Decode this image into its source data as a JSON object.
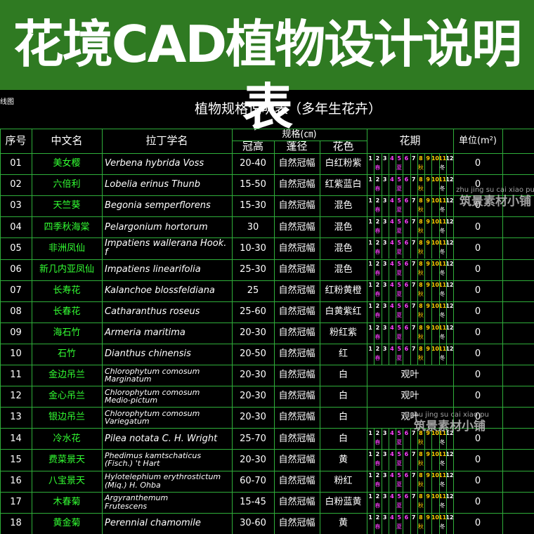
{
  "header": {
    "title": "花境CAD植物设计说明表"
  },
  "corner_label": "线图",
  "table": {
    "title": "植物规格说明表（多年生花卉）",
    "columns": {
      "no": "序号",
      "cn": "中文名",
      "latin": "拉丁学名",
      "spec": "规格(㎝)",
      "height": "冠高",
      "spread": "蓬径",
      "color": "花色",
      "period": "花期",
      "unit": "单位(m²)"
    },
    "months": [
      "1",
      "2",
      "3",
      "4",
      "5",
      "6",
      "7",
      "8",
      "9",
      "10",
      "11",
      "12"
    ],
    "seasons": [
      "春",
      "夏",
      "秋",
      "冬"
    ],
    "rows": [
      {
        "no": "01",
        "cn": "美女樱",
        "latin": "Verbena hybrida Voss",
        "height": "20-40",
        "spread": "自然冠幅",
        "color": "白红粉紫",
        "period": null,
        "unit": 0
      },
      {
        "no": "02",
        "cn": "六倍利",
        "latin": "Lobelia erinus Thunb",
        "height": "15-50",
        "spread": "自然冠幅",
        "color": "红紫蓝白",
        "period": null,
        "unit": 0
      },
      {
        "no": "03",
        "cn": "天竺葵",
        "latin": "Begonia semperflorens",
        "height": "15-30",
        "spread": "自然冠幅",
        "color": "混色",
        "period": null,
        "unit": 0
      },
      {
        "no": "04",
        "cn": "四季秋海棠",
        "latin": "Pelargonium hortorum",
        "height": "30",
        "spread": "自然冠幅",
        "color": "混色",
        "period": null,
        "unit": 0
      },
      {
        "no": "05",
        "cn": "非洲凤仙",
        "latin": "Impatiens wallerana Hook. f",
        "height": "10-30",
        "spread": "自然冠幅",
        "color": "混色",
        "period": null,
        "unit": 0
      },
      {
        "no": "06",
        "cn": "新几内亚凤仙",
        "latin": "Impatiens linearifolia",
        "height": "25-30",
        "spread": "自然冠幅",
        "color": "混色",
        "period": null,
        "unit": 0
      },
      {
        "no": "07",
        "cn": "长寿花",
        "latin": "Kalanchoe blossfeldiana",
        "height": "25",
        "spread": "自然冠幅",
        "color": "红粉黄橙",
        "period": null,
        "unit": 0
      },
      {
        "no": "08",
        "cn": "长春花",
        "latin": "Catharanthus roseus",
        "height": "25-60",
        "spread": "自然冠幅",
        "color": "白黄紫红",
        "period": null,
        "unit": 0
      },
      {
        "no": "09",
        "cn": "海石竹",
        "latin": "Armeria maritima",
        "height": "20-30",
        "spread": "自然冠幅",
        "color": "粉红紫",
        "period": null,
        "unit": 0
      },
      {
        "no": "10",
        "cn": "石竹",
        "latin": "Dianthus chinensis",
        "height": "20-50",
        "spread": "自然冠幅",
        "color": "红",
        "period": null,
        "unit": 0
      },
      {
        "no": "11",
        "cn": "金边吊兰",
        "latin": "Chlorophytum comosum\nMarginatum",
        "height": "20-30",
        "spread": "自然冠幅",
        "color": "白",
        "period": "观叶",
        "unit": 0
      },
      {
        "no": "12",
        "cn": "金心吊兰",
        "latin": "Chlorophytum comosum\nMedio-pictum",
        "height": "20-30",
        "spread": "自然冠幅",
        "color": "白",
        "period": "观叶",
        "unit": 0
      },
      {
        "no": "13",
        "cn": "银边吊兰",
        "latin": "Chlorophytum comosum\nVariegatum",
        "height": "20-30",
        "spread": "自然冠幅",
        "color": "白",
        "period": "观叶",
        "unit": 0
      },
      {
        "no": "14",
        "cn": "冷水花",
        "latin": "Pilea notata C. H. Wright",
        "height": "25-70",
        "spread": "自然冠幅",
        "color": "白",
        "period": null,
        "unit": 0
      },
      {
        "no": "15",
        "cn": "费菜景天",
        "latin": "Phedimus kamtschaticus\n(Fisch.) 't Hart",
        "height": "20-30",
        "spread": "自然冠幅",
        "color": "黄",
        "period": null,
        "unit": 0
      },
      {
        "no": "16",
        "cn": "八宝景天",
        "latin": "Hylotelephium erythrostictum\n(Miq.) H. Ohba",
        "height": "60-70",
        "spread": "自然冠幅",
        "color": "粉红",
        "period": null,
        "unit": 0
      },
      {
        "no": "17",
        "cn": "木春菊",
        "latin": "Argyranthemum\nFrutescens",
        "height": "15-45",
        "spread": "自然冠幅",
        "color": "白粉蓝黄",
        "period": null,
        "unit": 0
      },
      {
        "no": "18",
        "cn": "黄金菊",
        "latin": "Perennial chamomile",
        "height": "30-60",
        "spread": "自然冠幅",
        "color": "黄",
        "period": null,
        "unit": 0
      }
    ]
  },
  "watermark": {
    "pinyin": "zhu jing su cai xiao pu",
    "name": "筑景素材小铺"
  }
}
